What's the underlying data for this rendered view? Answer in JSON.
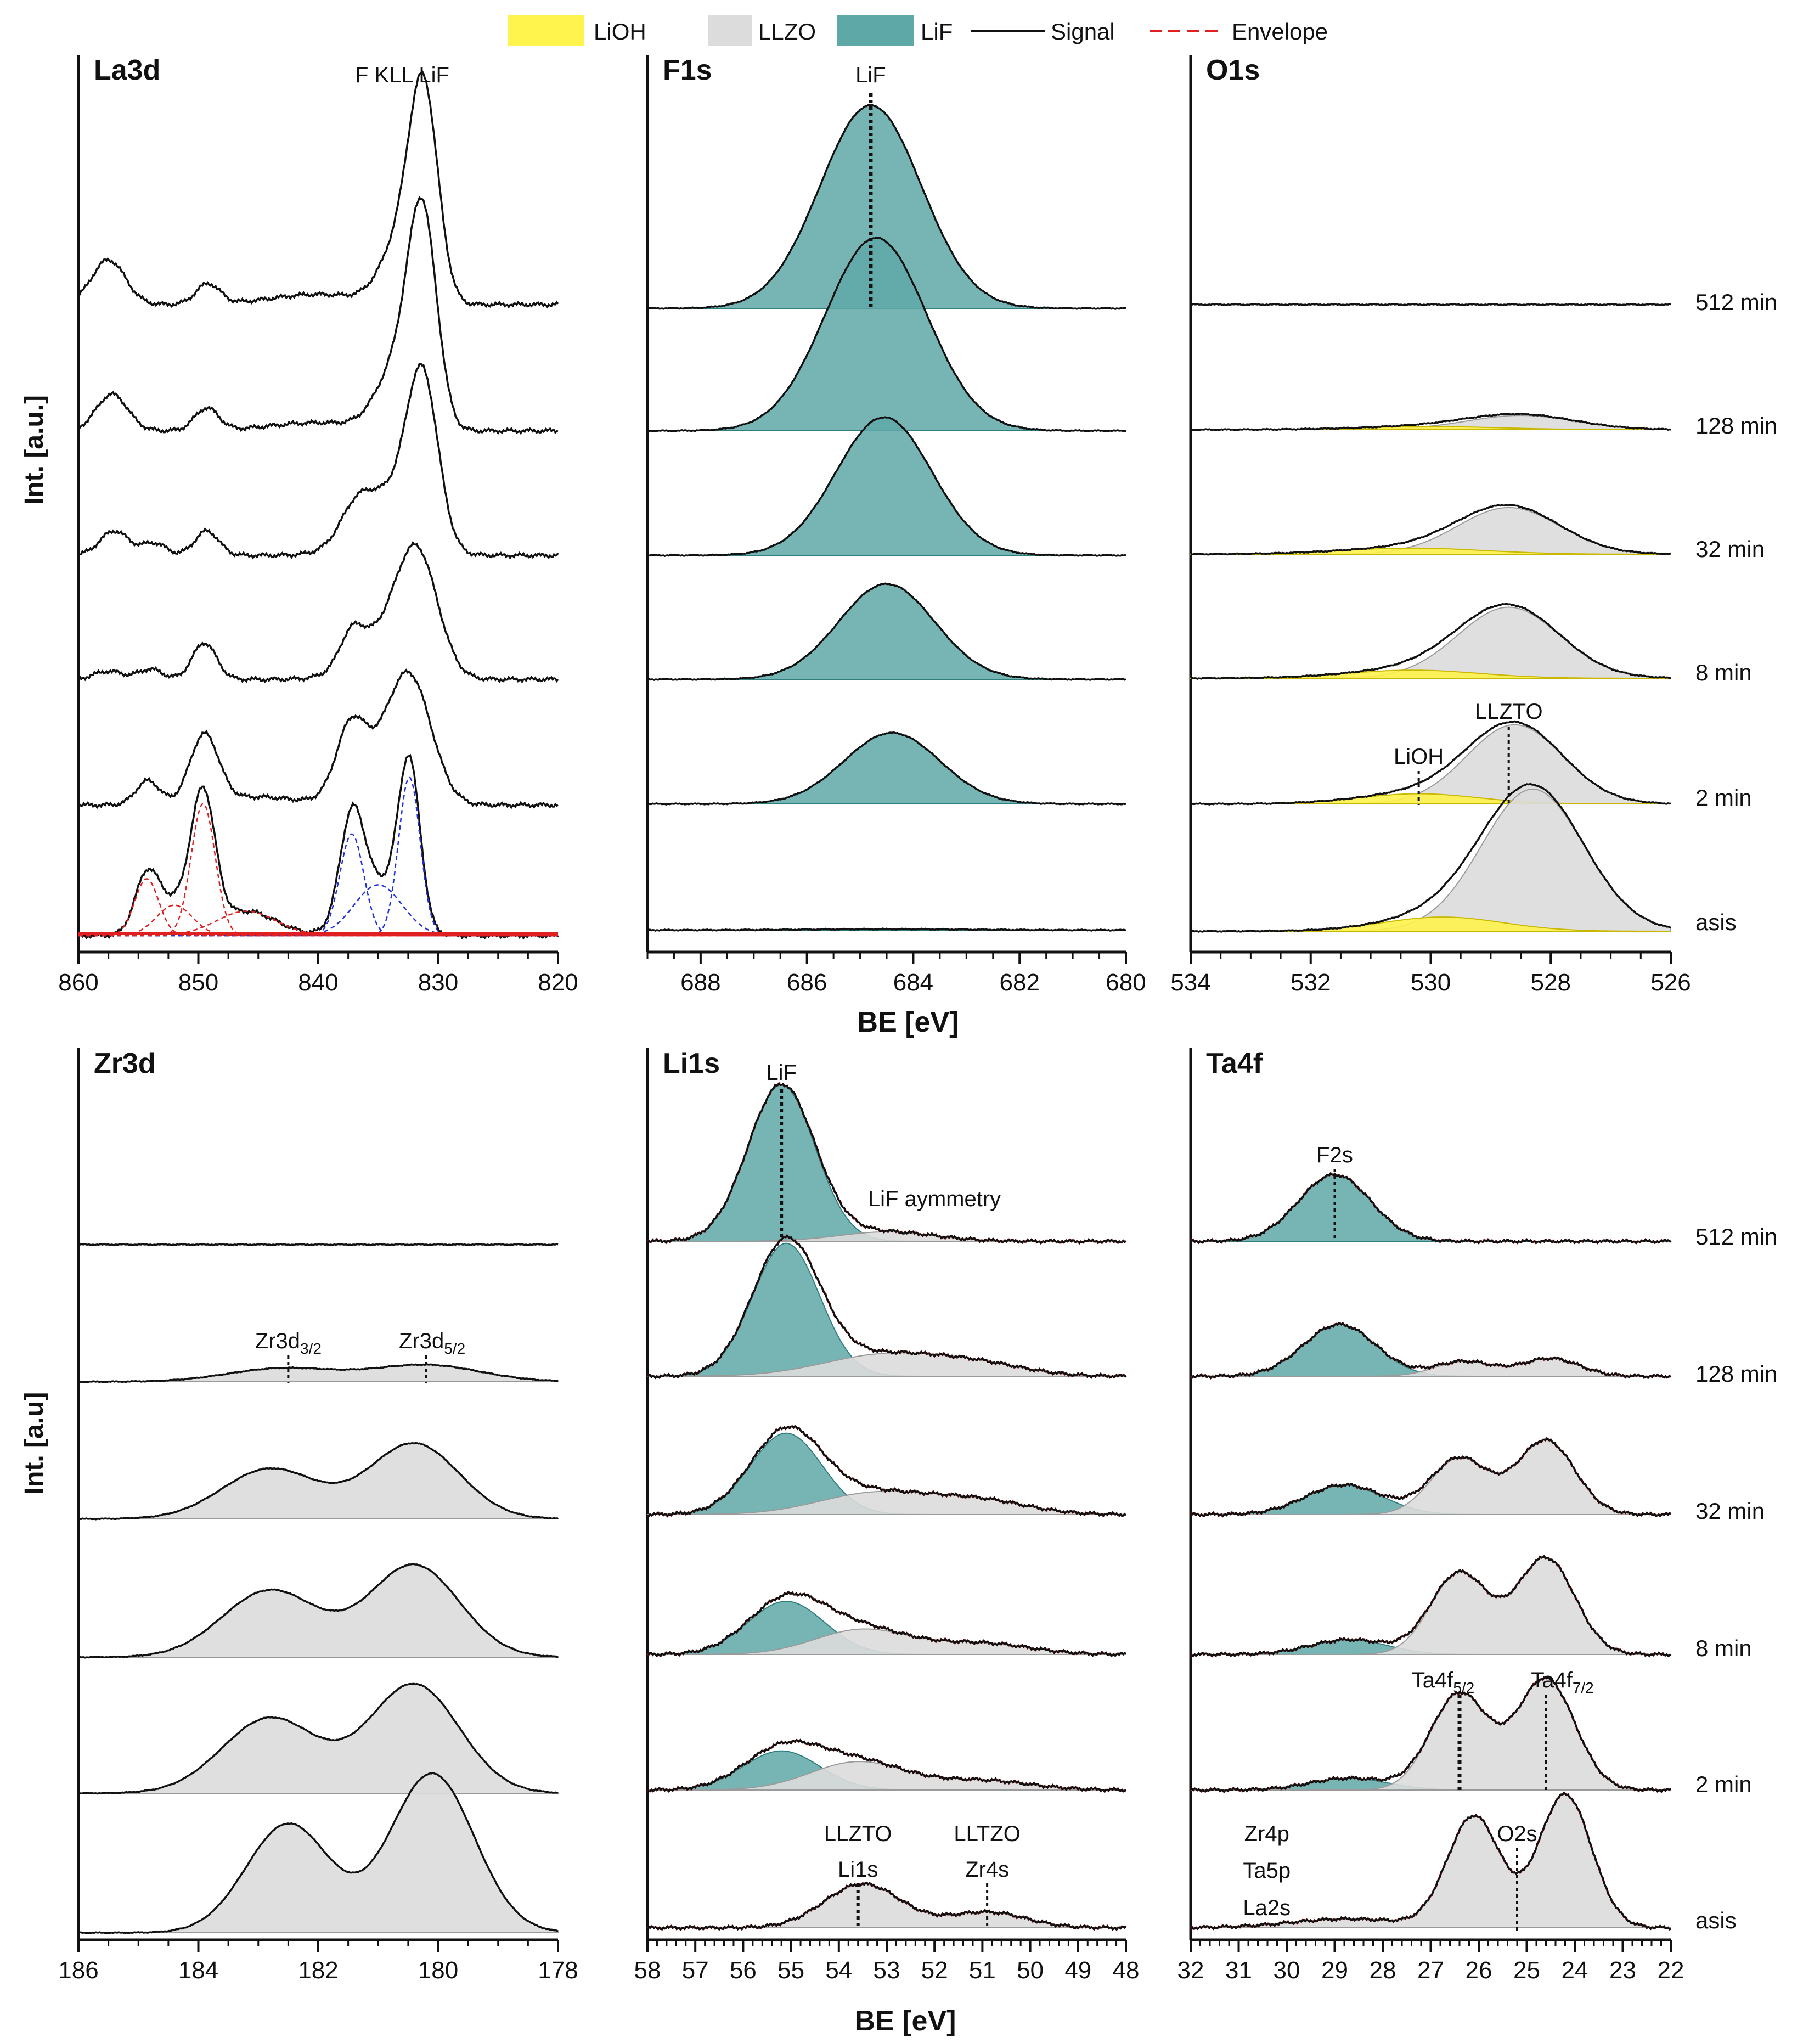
{
  "legend": {
    "lioh": "LiOH",
    "llzo": "LLZO",
    "lif": "LiF",
    "signal": "Signal",
    "envelope": "Envelope"
  },
  "colors": {
    "lioh": "#fff34d",
    "llzo": "#dcdcdc",
    "lif": "#5fa8a8",
    "lif_edge": "#2f7f7f",
    "signal": "#111111",
    "envelope": "#e02020",
    "fit_red": "#e02020",
    "fit_blue": "#2030e0"
  },
  "row_labels": [
    "512 min",
    "128 min",
    "32 min",
    "8 min",
    "2 min",
    "asis"
  ],
  "ylabel_top": "Int. [a.u.]",
  "ylabel_bottom": "Int. [a.u]",
  "xlabel_top": "BE [eV]",
  "xlabel_bottom": "BE [eV]",
  "chart_data": [
    {
      "id": "la3d",
      "type": "line",
      "title": "La3d",
      "xlim": [
        860,
        820
      ],
      "ticks": [
        "860",
        "850",
        "840",
        "830",
        "820"
      ],
      "traces": [
        {
          "row": "512 min",
          "peaks": [
            [
              831.2,
              1.0,
              1.2
            ],
            [
              833.2,
              0.28,
              1.6
            ],
            [
              849.2,
              0.1,
              1.0
            ],
            [
              857.5,
              0.22,
              1.4
            ],
            [
              840,
              0.05,
              4
            ]
          ]
        },
        {
          "row": "128 min",
          "peaks": [
            [
              831.3,
              1.0,
              1.2
            ],
            [
              833.4,
              0.3,
              1.7
            ],
            [
              849.3,
              0.11,
              1.0
            ],
            [
              857.2,
              0.18,
              1.3
            ],
            [
              840,
              0.04,
              4
            ]
          ]
        },
        {
          "row": "32 min",
          "peaks": [
            [
              831.3,
              0.8,
              1.3
            ],
            [
              834.5,
              0.3,
              2.5
            ],
            [
              837,
              0.1,
              1.2
            ],
            [
              849.3,
              0.12,
              1.0
            ],
            [
              853.7,
              0.06,
              1.0
            ],
            [
              857,
              0.12,
              1.2
            ]
          ]
        },
        {
          "row": "8 min",
          "peaks": [
            [
              831.7,
              0.55,
              1.7
            ],
            [
              834.5,
              0.2,
              2.5
            ],
            [
              837.2,
              0.15,
              1.0
            ],
            [
              849.5,
              0.18,
              1.0
            ],
            [
              854,
              0.05,
              1.0
            ],
            [
              857.5,
              0.04,
              1.2
            ]
          ]
        },
        {
          "row": "2 min",
          "peaks": [
            [
              832.3,
              0.55,
              1.8
            ],
            [
              835,
              0.18,
              2.5
            ],
            [
              837.3,
              0.3,
              1.2
            ],
            [
              849.5,
              0.34,
              1.2
            ],
            [
              854.2,
              0.12,
              1.0
            ],
            [
              845,
              0.04,
              3
            ]
          ]
        },
        {
          "row": "asis",
          "peaks": [
            [
              832.4,
              0.78,
              0.9
            ],
            [
              837.2,
              0.5,
              1.0
            ],
            [
              835,
              0.25,
              2.0
            ],
            [
              849.6,
              0.65,
              1.0
            ],
            [
              854.3,
              0.28,
              1.0
            ],
            [
              852,
              0.15,
              1.5
            ],
            [
              846,
              0.12,
              2.5
            ]
          ]
        }
      ],
      "annotations": [
        {
          "text": "F KLL LiF",
          "x": 833
        }
      ]
    },
    {
      "id": "f1s",
      "type": "area",
      "title": "F1s",
      "xlim": [
        689,
        680
      ],
      "ticks": [
        "688",
        "686",
        "684",
        "682",
        "680"
      ],
      "traces": [
        {
          "row": "512 min",
          "lif": [
            684.8,
            1.0,
            0.95
          ]
        },
        {
          "row": "128 min",
          "lif": [
            684.7,
            0.95,
            0.95
          ]
        },
        {
          "row": "32 min",
          "lif": [
            684.55,
            0.68,
            0.9
          ]
        },
        {
          "row": "8 min",
          "lif": [
            684.5,
            0.47,
            0.9
          ]
        },
        {
          "row": "2 min",
          "lif": [
            684.4,
            0.35,
            0.9
          ]
        },
        {
          "row": "asis",
          "lif": [
            684.5,
            0.005,
            1.5
          ]
        }
      ],
      "annotations": [
        {
          "text": "LiF",
          "x": 684.8
        }
      ]
    },
    {
      "id": "o1s",
      "type": "area",
      "title": "O1s",
      "xlim": [
        534,
        526
      ],
      "ticks": [
        "534",
        "532",
        "530",
        "528",
        "526"
      ],
      "traces": [
        {
          "row": "512 min",
          "llzo": [
            528.5,
            0.0,
            0.8
          ],
          "lioh": [
            530,
            0.0,
            1.0
          ]
        },
        {
          "row": "128 min",
          "llzo": [
            528.5,
            0.07,
            0.9
          ],
          "lioh": [
            530,
            0.015,
            1.2
          ]
        },
        {
          "row": "32 min",
          "llzo": [
            528.7,
            0.23,
            0.85
          ],
          "lioh": [
            530.3,
            0.03,
            1.2
          ]
        },
        {
          "row": "8 min",
          "llzo": [
            528.7,
            0.35,
            0.85
          ],
          "lioh": [
            530.3,
            0.04,
            1.1
          ]
        },
        {
          "row": "2 min",
          "llzo": [
            528.6,
            0.39,
            0.8
          ],
          "lioh": [
            530.2,
            0.05,
            1.0
          ]
        },
        {
          "row": "asis",
          "llzo": [
            528.3,
            0.7,
            0.85
          ],
          "lioh": [
            529.8,
            0.07,
            1.0
          ]
        }
      ],
      "annotations": [
        {
          "text": "LLZTO",
          "x": 528.7
        },
        {
          "text": "LiOH",
          "x": 530.2
        }
      ]
    },
    {
      "id": "zr3d",
      "type": "area",
      "title": "Zr3d",
      "xlim": [
        186,
        178
      ],
      "ticks": [
        "186",
        "184",
        "182",
        "180",
        "178"
      ],
      "traces": [
        {
          "row": "512 min",
          "llzo": [
            [
              180.2,
              0.0,
              0.8
            ],
            [
              182.5,
              0.0,
              0.8
            ]
          ]
        },
        {
          "row": "128 min",
          "llzo": [
            [
              180.2,
              0.1,
              0.9
            ],
            [
              182.6,
              0.08,
              0.9
            ]
          ]
        },
        {
          "row": "32 min",
          "llzo": [
            [
              180.4,
              0.45,
              0.75
            ],
            [
              182.8,
              0.3,
              0.8
            ]
          ]
        },
        {
          "row": "8 min",
          "llzo": [
            [
              180.4,
              0.55,
              0.75
            ],
            [
              182.8,
              0.4,
              0.8
            ]
          ]
        },
        {
          "row": "2 min",
          "llzo": [
            [
              180.4,
              0.65,
              0.75
            ],
            [
              182.8,
              0.45,
              0.8
            ]
          ]
        },
        {
          "row": "asis",
          "llzo": [
            [
              180.1,
              0.95,
              0.7
            ],
            [
              182.5,
              0.65,
              0.7
            ]
          ]
        }
      ],
      "annotations": [
        {
          "text": "Zr3d",
          "sub": "3/2",
          "x": 182.5
        },
        {
          "text": "Zr3d",
          "sub": "5/2",
          "x": 180.1
        }
      ]
    },
    {
      "id": "li1s",
      "type": "area",
      "title": "Li1s",
      "xlim": [
        58,
        48
      ],
      "ticks": [
        "58",
        "57",
        "56",
        "55",
        "54",
        "53",
        "52",
        "51",
        "50",
        "49",
        "48"
      ],
      "traces": [
        {
          "row": "512 min",
          "lif": [
            55.2,
            1.0,
            0.7
          ],
          "llzo": [
            [
              53,
              0.06,
              1.0
            ]
          ]
        },
        {
          "row": "128 min",
          "lif": [
            55.1,
            0.85,
            0.7
          ],
          "llzo": [
            [
              53,
              0.14,
              1.3
            ],
            [
              51,
              0.06,
              1.0
            ]
          ]
        },
        {
          "row": "32 min",
          "lif": [
            55.1,
            0.52,
            0.75
          ],
          "llzo": [
            [
              53.2,
              0.14,
              1.2
            ],
            [
              51,
              0.08,
              1.0
            ]
          ]
        },
        {
          "row": "8 min",
          "lif": [
            55.1,
            0.34,
            0.8
          ],
          "llzo": [
            [
              53.5,
              0.16,
              1.0
            ],
            [
              51,
              0.07,
              1.0
            ]
          ]
        },
        {
          "row": "2 min",
          "lif": [
            55.2,
            0.25,
            0.8
          ],
          "llzo": [
            [
              53.6,
              0.18,
              1.0
            ],
            [
              51,
              0.06,
              1.0
            ]
          ]
        },
        {
          "row": "asis",
          "lif": [
            55,
            0.0,
            0.8
          ],
          "llzo": [
            [
              53.5,
              0.28,
              0.8
            ],
            [
              50.9,
              0.1,
              0.8
            ]
          ]
        }
      ],
      "annotations": [
        {
          "text": "LiF",
          "x": 55.2
        },
        {
          "text": "LiF aymmetry",
          "x": 51.9
        },
        {
          "text": "LLZTO",
          "x": 53.6
        },
        {
          "text": "Li1s",
          "x": 53.6
        },
        {
          "text": "LLTZO",
          "x": 50.9
        },
        {
          "text": "Zr4s",
          "x": 50.9
        }
      ]
    },
    {
      "id": "ta4f",
      "type": "area",
      "title": "Ta4f",
      "xlim": [
        32,
        22
      ],
      "ticks": [
        "32",
        "31",
        "30",
        "29",
        "28",
        "27",
        "26",
        "25",
        "24",
        "23",
        "22"
      ],
      "traces": [
        {
          "row": "512 min",
          "lif": [
            29,
            0.45,
            0.75
          ],
          "llzo": [
            [
              26.3,
              0.0,
              0.6
            ],
            [
              24.5,
              0.0,
              0.6
            ]
          ]
        },
        {
          "row": "128 min",
          "lif": [
            28.9,
            0.35,
            0.75
          ],
          "llzo": [
            [
              26.3,
              0.1,
              0.6
            ],
            [
              24.5,
              0.12,
              0.6
            ]
          ]
        },
        {
          "row": "32 min",
          "lif": [
            28.8,
            0.2,
            0.8
          ],
          "llzo": [
            [
              26.4,
              0.38,
              0.6
            ],
            [
              24.6,
              0.5,
              0.6
            ]
          ]
        },
        {
          "row": "8 min",
          "lif": [
            28.7,
            0.1,
            0.8
          ],
          "llzo": [
            [
              26.4,
              0.55,
              0.6
            ],
            [
              24.6,
              0.65,
              0.6
            ]
          ]
        },
        {
          "row": "2 min",
          "lif": [
            28.7,
            0.08,
            0.8
          ],
          "llzo": [
            [
              26.4,
              0.65,
              0.6
            ],
            [
              24.6,
              0.75,
              0.6
            ]
          ]
        },
        {
          "row": "asis",
          "lif": [
            28.7,
            0.0,
            0.8
          ],
          "llzo": [
            [
              26.1,
              0.75,
              0.55
            ],
            [
              24.2,
              0.9,
              0.55
            ],
            [
              28.7,
              0.06,
              1.2
            ]
          ]
        }
      ],
      "annotations": [
        {
          "text": "F2s",
          "x": 29
        },
        {
          "text": "Ta4f",
          "sub": "5/2",
          "x": 26.4
        },
        {
          "text": "Ta4f",
          "sub": "7/2",
          "x": 24.6
        },
        {
          "text": "O2s",
          "x": 25.2
        },
        {
          "text": "Zr4p",
          "x": 28.7
        },
        {
          "text": "Ta5p",
          "x": 28.7
        },
        {
          "text": "La2s",
          "x": 28.7
        }
      ]
    }
  ]
}
